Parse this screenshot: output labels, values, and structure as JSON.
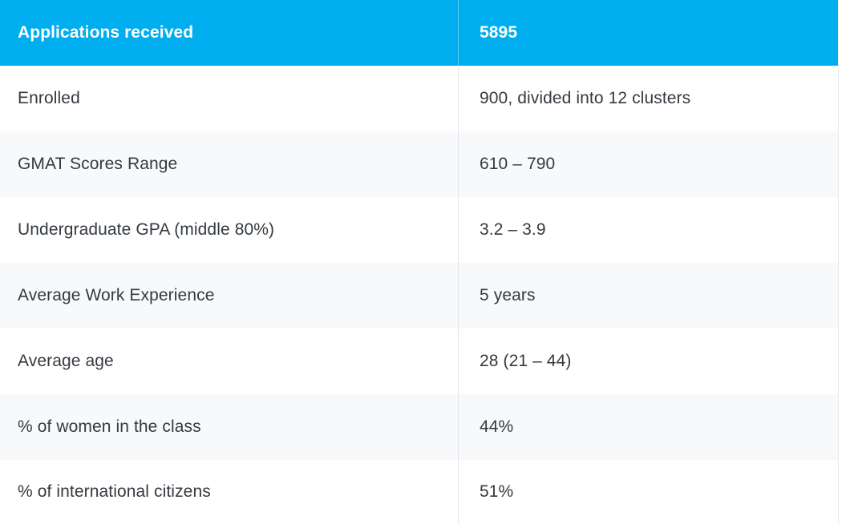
{
  "table": {
    "header": {
      "label": "Applications received",
      "value": "5895"
    },
    "rows": [
      {
        "label": "Enrolled",
        "value": "900, divided into 12 clusters"
      },
      {
        "label": "GMAT Scores Range",
        "value": "610 – 790"
      },
      {
        "label": "Undergraduate GPA (middle 80%)",
        "value": "3.2 – 3.9"
      },
      {
        "label": "Average Work Experience",
        "value": "5 years"
      },
      {
        "label": "Average age",
        "value": "28 (21 – 44)"
      },
      {
        "label": "% of women in the class",
        "value": "44%"
      },
      {
        "label": "% of international citizens",
        "value": "51%"
      }
    ],
    "colors": {
      "header_bg": "#00aeef",
      "stripe_bg": "#f8f9fa",
      "text": "#343a40"
    }
  }
}
